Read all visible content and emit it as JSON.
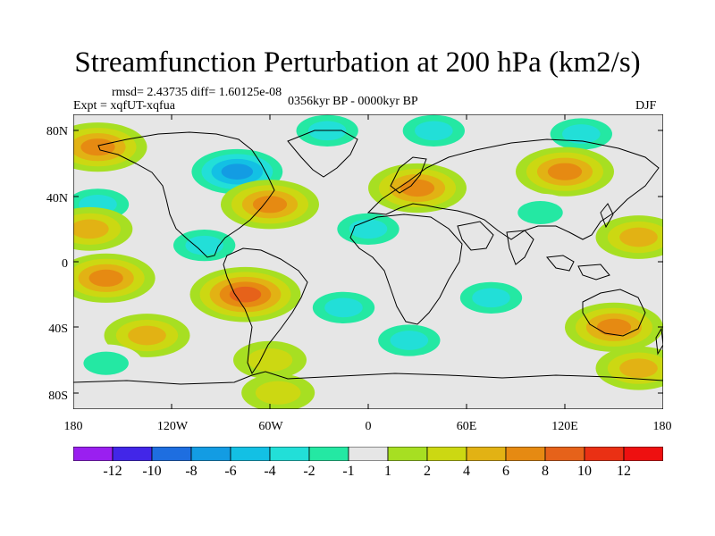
{
  "title": "Streamfunction Perturbation at 200 hPa (km2/s)",
  "stats_line": "rmsd= 2.43735 diff= 1.60125e-08",
  "experiment_line": "Expt = xqfUT-xqfua",
  "period_line": "0356kyr BP - 0000kyr BP",
  "season": "DJF",
  "lat_axis": [
    "80N",
    "40N",
    "0",
    "40S",
    "80S"
  ],
  "lon_axis": [
    "180",
    "120W",
    "60W",
    "0",
    "60E",
    "120E",
    "180"
  ],
  "colorbar": {
    "labels": [
      "-12",
      "-10",
      "-8",
      "-6",
      "-4",
      "-2",
      "-1",
      "1",
      "2",
      "4",
      "6",
      "8",
      "10",
      "12"
    ],
    "colors": [
      "#9a1ff0",
      "#4226e8",
      "#1e6ee0",
      "#139ce3",
      "#13c0e4",
      "#22dfd8",
      "#24e8a3",
      "#e6e6e6",
      "#a7df22",
      "#ccd812",
      "#e2b214",
      "#e68a12",
      "#e6621a",
      "#ea3014",
      "#ee1010"
    ]
  },
  "chart_data": {
    "type": "heatmap",
    "variable": "Streamfunction Perturbation at 200 hPa",
    "units": "km2/s",
    "season": "DJF",
    "rmsd": 2.43735,
    "diff": 1.60125e-08,
    "lon_range": [
      -180,
      180
    ],
    "lat_range": [
      -90,
      90
    ],
    "levels": [
      -12,
      -10,
      -8,
      -6,
      -4,
      -2,
      -1,
      1,
      2,
      4,
      6,
      8,
      10,
      12
    ],
    "anomalies": [
      {
        "lon": -165,
        "lat": 70,
        "value": 6
      },
      {
        "lon": -80,
        "lat": 55,
        "value": -8
      },
      {
        "lon": -25,
        "lat": 80,
        "value": -4
      },
      {
        "lon": 40,
        "lat": 80,
        "value": -4
      },
      {
        "lon": 130,
        "lat": 78,
        "value": -4
      },
      {
        "lon": 30,
        "lat": 45,
        "value": 6
      },
      {
        "lon": 120,
        "lat": 55,
        "value": 6
      },
      {
        "lon": -165,
        "lat": 35,
        "value": -4
      },
      {
        "lon": -60,
        "lat": 35,
        "value": 6
      },
      {
        "lon": 0,
        "lat": 20,
        "value": -4
      },
      {
        "lon": 105,
        "lat": 30,
        "value": -2
      },
      {
        "lon": 165,
        "lat": 15,
        "value": 4
      },
      {
        "lon": -170,
        "lat": 20,
        "value": 4
      },
      {
        "lon": -100,
        "lat": 10,
        "value": -4
      },
      {
        "lon": -160,
        "lat": -10,
        "value": 6
      },
      {
        "lon": -75,
        "lat": -20,
        "value": 8
      },
      {
        "lon": -15,
        "lat": -28,
        "value": -4
      },
      {
        "lon": 75,
        "lat": -22,
        "value": -4
      },
      {
        "lon": -135,
        "lat": -45,
        "value": 4
      },
      {
        "lon": 25,
        "lat": -48,
        "value": -4
      },
      {
        "lon": 150,
        "lat": -40,
        "value": 6
      },
      {
        "lon": -160,
        "lat": -62,
        "value": -2
      },
      {
        "lon": -60,
        "lat": -60,
        "value": 2
      },
      {
        "lon": 165,
        "lat": -65,
        "value": 4
      },
      {
        "lon": -55,
        "lat": -80,
        "value": 2
      }
    ]
  }
}
